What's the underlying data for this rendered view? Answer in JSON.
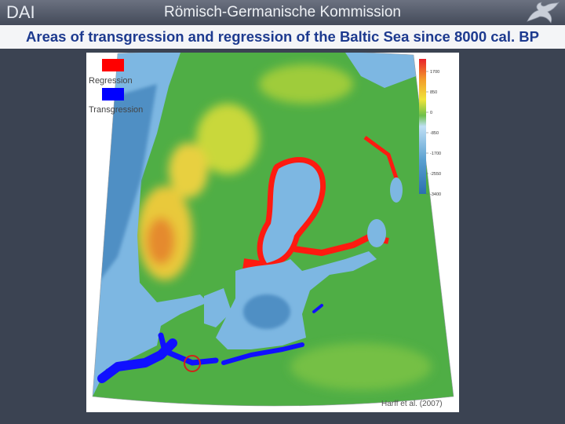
{
  "header": {
    "left": "DAI",
    "center": "Römisch-Germanische Kommission"
  },
  "title": "Areas of transgression and regression of the Baltic Sea since 8000 cal. BP",
  "map": {
    "legend": [
      {
        "label": "Regression",
        "color": "#ff0000"
      },
      {
        "label": "Transgression",
        "color": "#0000ff"
      }
    ],
    "colorbar": {
      "ticks": [
        1700,
        850,
        0,
        -850,
        -1700,
        -2550,
        -3400
      ]
    },
    "credit": "Harff et al. (2007)"
  }
}
